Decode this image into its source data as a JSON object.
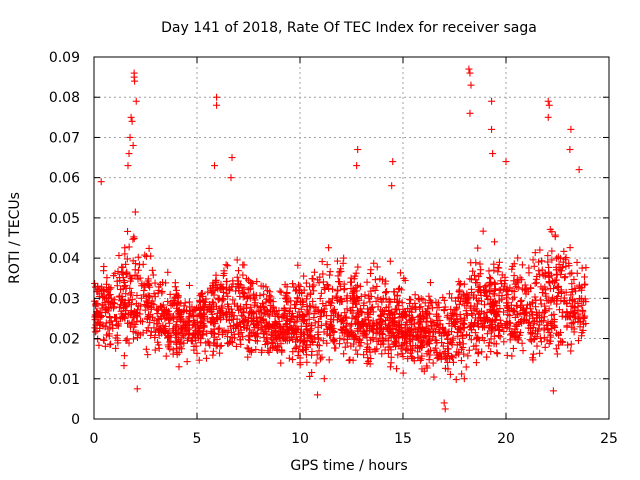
{
  "chart_data": {
    "type": "scatter",
    "title": "Day 141 of 2018, Rate Of TEC Index for receiver saga",
    "xlabel": "GPS time / hours",
    "ylabel": "ROTI / TECUs",
    "xlim": [
      0,
      25
    ],
    "ylim": [
      0,
      0.09
    ],
    "x_ticks": [
      0,
      5,
      10,
      15,
      20,
      25
    ],
    "x_tick_labels": [
      "0",
      "5",
      "10",
      "15",
      "20",
      "25"
    ],
    "y_ticks": [
      0,
      0.01,
      0.02,
      0.03,
      0.04,
      0.05,
      0.06,
      0.07,
      0.08,
      0.09
    ],
    "y_tick_labels": [
      "0",
      "0.01",
      "0.02",
      "0.03",
      "0.04",
      "0.05",
      "0.06",
      "0.07",
      "0.08",
      "0.09"
    ],
    "grid": true,
    "marker": "+",
    "color": "#ff0000",
    "series": [
      {
        "name": "ROTI",
        "notable_points": [
          {
            "x": 1.95,
            "y": 0.086
          },
          {
            "x": 1.95,
            "y": 0.085
          },
          {
            "x": 1.97,
            "y": 0.084
          },
          {
            "x": 2.05,
            "y": 0.079
          },
          {
            "x": 1.8,
            "y": 0.075
          },
          {
            "x": 1.85,
            "y": 0.074
          },
          {
            "x": 1.75,
            "y": 0.07
          },
          {
            "x": 1.9,
            "y": 0.068
          },
          {
            "x": 1.7,
            "y": 0.066
          },
          {
            "x": 1.65,
            "y": 0.063
          },
          {
            "x": 0.35,
            "y": 0.059
          },
          {
            "x": 5.95,
            "y": 0.08
          },
          {
            "x": 5.95,
            "y": 0.078
          },
          {
            "x": 5.85,
            "y": 0.063
          },
          {
            "x": 6.7,
            "y": 0.065
          },
          {
            "x": 6.65,
            "y": 0.06
          },
          {
            "x": 12.8,
            "y": 0.067
          },
          {
            "x": 12.75,
            "y": 0.063
          },
          {
            "x": 14.5,
            "y": 0.064
          },
          {
            "x": 14.45,
            "y": 0.058
          },
          {
            "x": 18.2,
            "y": 0.087
          },
          {
            "x": 18.25,
            "y": 0.086
          },
          {
            "x": 18.3,
            "y": 0.083
          },
          {
            "x": 18.25,
            "y": 0.076
          },
          {
            "x": 19.3,
            "y": 0.079
          },
          {
            "x": 19.3,
            "y": 0.072
          },
          {
            "x": 19.35,
            "y": 0.066
          },
          {
            "x": 20.0,
            "y": 0.064
          },
          {
            "x": 22.05,
            "y": 0.079
          },
          {
            "x": 22.1,
            "y": 0.078
          },
          {
            "x": 22.05,
            "y": 0.075
          },
          {
            "x": 23.15,
            "y": 0.072
          },
          {
            "x": 23.1,
            "y": 0.067
          },
          {
            "x": 23.55,
            "y": 0.062
          },
          {
            "x": 17.05,
            "y": 0.0025
          },
          {
            "x": 17.0,
            "y": 0.004
          },
          {
            "x": 10.85,
            "y": 0.006
          },
          {
            "x": 22.3,
            "y": 0.007
          },
          {
            "x": 2.1,
            "y": 0.0075
          }
        ],
        "bulk_profile": {
          "hours": [
            0,
            1,
            2,
            3,
            4,
            5,
            6,
            7,
            8,
            9,
            10,
            11,
            12,
            13,
            14,
            15,
            16,
            17,
            18,
            19,
            20,
            21,
            22,
            23,
            23.9
          ],
          "typical": [
            0.026,
            0.028,
            0.03,
            0.026,
            0.024,
            0.023,
            0.026,
            0.027,
            0.025,
            0.023,
            0.023,
            0.025,
            0.026,
            0.024,
            0.025,
            0.023,
            0.021,
            0.02,
            0.024,
            0.027,
            0.028,
            0.026,
            0.028,
            0.027,
            0.026
          ],
          "upper": [
            0.038,
            0.046,
            0.055,
            0.042,
            0.036,
            0.033,
            0.04,
            0.045,
            0.038,
            0.035,
            0.038,
            0.045,
            0.048,
            0.04,
            0.045,
            0.04,
            0.035,
            0.035,
            0.043,
            0.05,
            0.045,
            0.042,
            0.05,
            0.048,
            0.042
          ],
          "lower": [
            0.015,
            0.013,
            0.012,
            0.012,
            0.012,
            0.012,
            0.011,
            0.012,
            0.011,
            0.011,
            0.01,
            0.009,
            0.01,
            0.01,
            0.01,
            0.01,
            0.009,
            0.007,
            0.009,
            0.011,
            0.012,
            0.012,
            0.011,
            0.012,
            0.013
          ]
        }
      }
    ]
  }
}
